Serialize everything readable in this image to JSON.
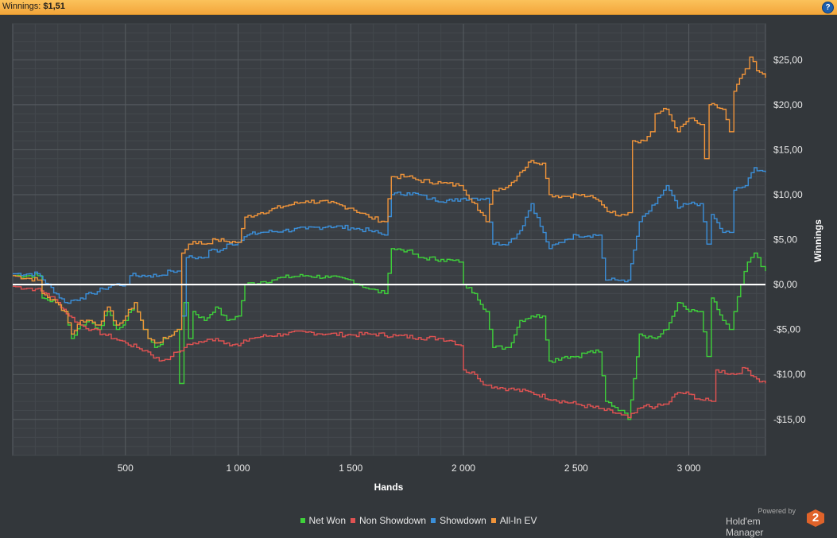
{
  "header": {
    "label": "Winnings:",
    "value": "$1,51",
    "help_icon": "?"
  },
  "brand": {
    "powered_by": "Powered by",
    "name": "Hold'em Manager",
    "logo_text": "2"
  },
  "chart_data": {
    "type": "line",
    "xlabel": "Hands",
    "ylabel": "Winnings",
    "xlim": [
      0,
      3340
    ],
    "ylim": [
      -19,
      29
    ],
    "x_ticks": [
      500,
      1000,
      1500,
      2000,
      2500,
      3000
    ],
    "x_tick_labels": [
      "500",
      "1 000",
      "1 500",
      "2 000",
      "2 500",
      "3 000"
    ],
    "y_ticks": [
      25,
      20,
      15,
      10,
      5,
      0,
      -5,
      -10,
      -15
    ],
    "y_tick_labels": [
      "$25,00",
      "$20,00",
      "$15,00",
      "$10,00",
      "$5,00",
      "$0,00",
      "-$5,00",
      "-$10,00",
      "-$15,00"
    ],
    "grid": true,
    "legend_position": "bottom",
    "series": [
      {
        "name": "Net Won",
        "color": "#3ed13a",
        "points": [
          [
            0,
            1
          ],
          [
            110,
            1
          ],
          [
            130,
            -1.5
          ],
          [
            190,
            -2
          ],
          [
            230,
            -3
          ],
          [
            260,
            -6
          ],
          [
            300,
            -4.5
          ],
          [
            340,
            -4
          ],
          [
            380,
            -5
          ],
          [
            420,
            -3
          ],
          [
            460,
            -5
          ],
          [
            490,
            -4.5
          ],
          [
            500,
            -4
          ],
          [
            540,
            -2
          ],
          [
            580,
            -5
          ],
          [
            600,
            -6
          ],
          [
            630,
            -7
          ],
          [
            680,
            -6
          ],
          [
            730,
            -5
          ],
          [
            740,
            -11
          ],
          [
            760,
            -2
          ],
          [
            780,
            -6
          ],
          [
            800,
            -3
          ],
          [
            850,
            -4
          ],
          [
            900,
            -2.5
          ],
          [
            950,
            -4
          ],
          [
            1000,
            -3.5
          ],
          [
            1030,
            0
          ],
          [
            1100,
            0.3
          ],
          [
            1150,
            0.5
          ],
          [
            1200,
            0.8
          ],
          [
            1300,
            1
          ],
          [
            1400,
            0.8
          ],
          [
            1500,
            0.5
          ],
          [
            1580,
            -0.5
          ],
          [
            1650,
            -1
          ],
          [
            1680,
            4
          ],
          [
            1750,
            3.8
          ],
          [
            1800,
            3
          ],
          [
            1900,
            2.8
          ],
          [
            1980,
            2.5
          ],
          [
            2000,
            0
          ],
          [
            2050,
            -1
          ],
          [
            2100,
            -3
          ],
          [
            2130,
            -7
          ],
          [
            2200,
            -7
          ],
          [
            2250,
            -4
          ],
          [
            2300,
            -3.5
          ],
          [
            2350,
            -3.5
          ],
          [
            2380,
            -8.5
          ],
          [
            2450,
            -8
          ],
          [
            2500,
            -8
          ],
          [
            2550,
            -7.5
          ],
          [
            2600,
            -7.5
          ],
          [
            2630,
            -13
          ],
          [
            2700,
            -14
          ],
          [
            2730,
            -15
          ],
          [
            2780,
            -5.5
          ],
          [
            2850,
            -6
          ],
          [
            2900,
            -5
          ],
          [
            2950,
            -2
          ],
          [
            3000,
            -3
          ],
          [
            3050,
            -3
          ],
          [
            3080,
            -8
          ],
          [
            3100,
            -1.5
          ],
          [
            3150,
            -4
          ],
          [
            3180,
            -5
          ],
          [
            3200,
            -3
          ],
          [
            3230,
            0
          ],
          [
            3260,
            2.5
          ],
          [
            3290,
            3.5
          ],
          [
            3320,
            2
          ],
          [
            3340,
            1.5
          ]
        ]
      },
      {
        "name": "Non Showdown",
        "color": "#e05252",
        "points": [
          [
            0,
            -0.2
          ],
          [
            100,
            -0.5
          ],
          [
            150,
            -1
          ],
          [
            200,
            -2
          ],
          [
            250,
            -3.5
          ],
          [
            300,
            -4.5
          ],
          [
            350,
            -5
          ],
          [
            400,
            -5.5
          ],
          [
            450,
            -6
          ],
          [
            500,
            -6.5
          ],
          [
            550,
            -7
          ],
          [
            600,
            -7.5
          ],
          [
            650,
            -8.5
          ],
          [
            700,
            -8
          ],
          [
            730,
            -7.5
          ],
          [
            760,
            -7
          ],
          [
            800,
            -6.5
          ],
          [
            850,
            -6.3
          ],
          [
            900,
            -6
          ],
          [
            950,
            -6.5
          ],
          [
            1000,
            -6.8
          ],
          [
            1050,
            -6
          ],
          [
            1100,
            -5.8
          ],
          [
            1200,
            -5.5
          ],
          [
            1300,
            -5.3
          ],
          [
            1400,
            -5.5
          ],
          [
            1500,
            -5.6
          ],
          [
            1600,
            -5.5
          ],
          [
            1700,
            -5.7
          ],
          [
            1800,
            -5.9
          ],
          [
            1900,
            -6
          ],
          [
            1950,
            -6.3
          ],
          [
            1990,
            -6.8
          ],
          [
            2000,
            -9.5
          ],
          [
            2050,
            -10
          ],
          [
            2100,
            -11.2
          ],
          [
            2200,
            -11.6
          ],
          [
            2300,
            -12
          ],
          [
            2400,
            -12.8
          ],
          [
            2500,
            -13.3
          ],
          [
            2600,
            -13.8
          ],
          [
            2700,
            -14.5
          ],
          [
            2730,
            -14.8
          ],
          [
            2800,
            -13.5
          ],
          [
            2850,
            -13.6
          ],
          [
            2900,
            -13.3
          ],
          [
            2950,
            -12
          ],
          [
            3000,
            -12.2
          ],
          [
            3050,
            -12.8
          ],
          [
            3100,
            -13
          ],
          [
            3120,
            -9.5
          ],
          [
            3200,
            -10
          ],
          [
            3250,
            -9.3
          ],
          [
            3300,
            -10.5
          ],
          [
            3340,
            -11
          ]
        ]
      },
      {
        "name": "Showdown",
        "color": "#3b8fd9",
        "points": [
          [
            0,
            1.2
          ],
          [
            110,
            1.2
          ],
          [
            230,
            -2
          ],
          [
            300,
            -1.5
          ],
          [
            350,
            -1
          ],
          [
            400,
            -0.5
          ],
          [
            450,
            0
          ],
          [
            500,
            0
          ],
          [
            520,
            1
          ],
          [
            600,
            1
          ],
          [
            650,
            1
          ],
          [
            700,
            1.5
          ],
          [
            730,
            1.5
          ],
          [
            750,
            -3.5
          ],
          [
            770,
            3
          ],
          [
            850,
            3
          ],
          [
            870,
            3.8
          ],
          [
            920,
            3.8
          ],
          [
            950,
            4.5
          ],
          [
            1000,
            4.7
          ],
          [
            1040,
            5.5
          ],
          [
            1100,
            5.8
          ],
          [
            1200,
            6
          ],
          [
            1300,
            6.2
          ],
          [
            1400,
            6.5
          ],
          [
            1500,
            6.3
          ],
          [
            1580,
            6
          ],
          [
            1650,
            5.5
          ],
          [
            1680,
            10
          ],
          [
            1750,
            10.2
          ],
          [
            1800,
            10
          ],
          [
            1850,
            9.5
          ],
          [
            1950,
            9.3
          ],
          [
            2000,
            9.6
          ],
          [
            2050,
            9.6
          ],
          [
            2100,
            9.6
          ],
          [
            2130,
            4.5
          ],
          [
            2200,
            4.7
          ],
          [
            2250,
            6
          ],
          [
            2300,
            9
          ],
          [
            2380,
            4
          ],
          [
            2450,
            5
          ],
          [
            2500,
            5.5
          ],
          [
            2600,
            5.5
          ],
          [
            2630,
            0.5
          ],
          [
            2700,
            0.5
          ],
          [
            2730,
            0.5
          ],
          [
            2780,
            7
          ],
          [
            2850,
            9
          ],
          [
            2900,
            11
          ],
          [
            2950,
            8.5
          ],
          [
            3000,
            9
          ],
          [
            3050,
            9
          ],
          [
            3080,
            4.5
          ],
          [
            3100,
            7.8
          ],
          [
            3150,
            5.8
          ],
          [
            3180,
            5.8
          ],
          [
            3200,
            10.5
          ],
          [
            3250,
            11
          ],
          [
            3290,
            13
          ],
          [
            3340,
            12.5
          ]
        ]
      },
      {
        "name": "All-In EV",
        "color": "#f0943a",
        "points": [
          [
            0,
            1
          ],
          [
            110,
            0.5
          ],
          [
            130,
            -1
          ],
          [
            190,
            -2
          ],
          [
            230,
            -3
          ],
          [
            260,
            -5.5
          ],
          [
            300,
            -4
          ],
          [
            340,
            -4
          ],
          [
            380,
            -4.5
          ],
          [
            420,
            -2.5
          ],
          [
            460,
            -4.5
          ],
          [
            490,
            -4
          ],
          [
            500,
            -3.5
          ],
          [
            540,
            -2
          ],
          [
            580,
            -5
          ],
          [
            600,
            -6
          ],
          [
            630,
            -6.5
          ],
          [
            680,
            -6
          ],
          [
            730,
            -5
          ],
          [
            750,
            3.5
          ],
          [
            780,
            4.5
          ],
          [
            800,
            4.8
          ],
          [
            850,
            4.5
          ],
          [
            900,
            5
          ],
          [
            950,
            4.8
          ],
          [
            1000,
            4.7
          ],
          [
            1030,
            7.5
          ],
          [
            1100,
            8
          ],
          [
            1200,
            8.7
          ],
          [
            1300,
            9.3
          ],
          [
            1400,
            9.1
          ],
          [
            1500,
            8.5
          ],
          [
            1580,
            7.5
          ],
          [
            1650,
            7
          ],
          [
            1680,
            12
          ],
          [
            1750,
            12
          ],
          [
            1800,
            11.6
          ],
          [
            1900,
            11.3
          ],
          [
            1980,
            11
          ],
          [
            2000,
            10.5
          ],
          [
            2050,
            9
          ],
          [
            2100,
            7
          ],
          [
            2130,
            10.5
          ],
          [
            2200,
            11
          ],
          [
            2250,
            12.5
          ],
          [
            2300,
            13.8
          ],
          [
            2350,
            13.5
          ],
          [
            2380,
            10
          ],
          [
            2450,
            9.8
          ],
          [
            2500,
            10
          ],
          [
            2550,
            9.8
          ],
          [
            2600,
            9.3
          ],
          [
            2650,
            8
          ],
          [
            2700,
            7.8
          ],
          [
            2730,
            8
          ],
          [
            2750,
            16
          ],
          [
            2800,
            16
          ],
          [
            2830,
            17
          ],
          [
            2850,
            19
          ],
          [
            2900,
            19.5
          ],
          [
            2950,
            17
          ],
          [
            3000,
            18.5
          ],
          [
            3050,
            17.8
          ],
          [
            3070,
            14
          ],
          [
            3090,
            20
          ],
          [
            3150,
            19.5
          ],
          [
            3180,
            17
          ],
          [
            3200,
            21.5
          ],
          [
            3250,
            24
          ],
          [
            3270,
            25.3
          ],
          [
            3300,
            23.8
          ],
          [
            3340,
            23
          ]
        ]
      }
    ]
  }
}
